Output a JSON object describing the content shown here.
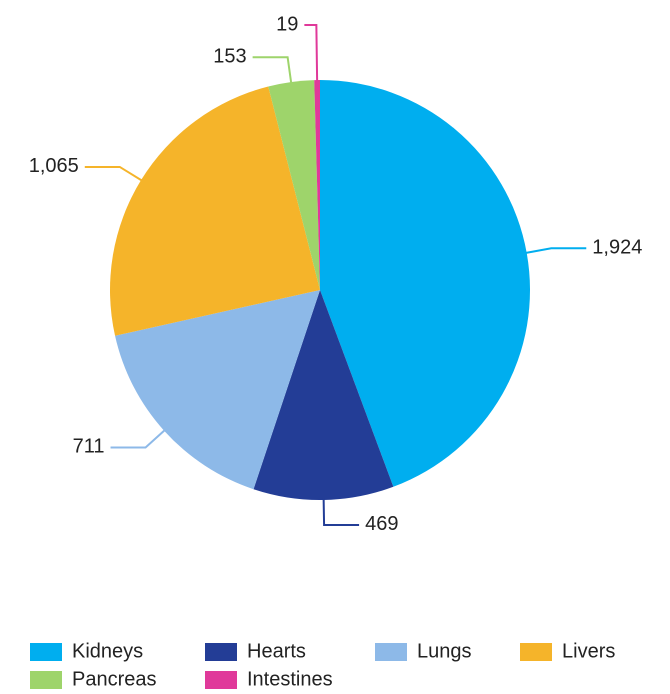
{
  "chart_data": {
    "type": "pie",
    "categories": [
      "Kidneys",
      "Hearts",
      "Lungs",
      "Livers",
      "Pancreas",
      "Intestines"
    ],
    "values": [
      1924,
      469,
      711,
      1065,
      153,
      19
    ],
    "value_labels": [
      "1,924",
      "469",
      "711",
      "1,065",
      "153",
      "19"
    ],
    "colors": [
      "#00aeef",
      "#233d96",
      "#8db9e8",
      "#f5b42a",
      "#9ed46b",
      "#e0399a"
    ],
    "legend": "bottom"
  }
}
